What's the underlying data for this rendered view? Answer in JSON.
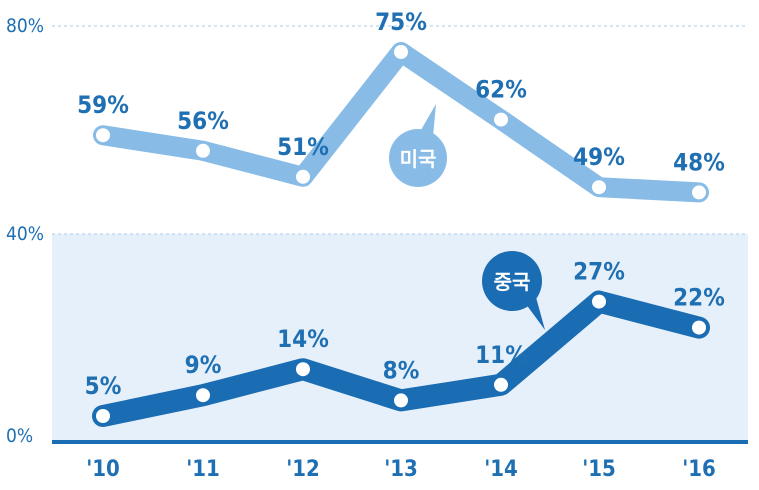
{
  "chart_data": {
    "type": "line",
    "categories": [
      "'10",
      "'11",
      "'12",
      "'13",
      "'14",
      "'15",
      "'16"
    ],
    "series": [
      {
        "name": "미국",
        "values": [
          59,
          56,
          51,
          75,
          62,
          49,
          48
        ],
        "labels": [
          "59%",
          "56%",
          "51%",
          "75%",
          "62%",
          "49%",
          "48%"
        ],
        "color": "#88bce6",
        "label_color": "#1f6fb3"
      },
      {
        "name": "중국",
        "values": [
          5,
          9,
          14,
          8,
          11,
          27,
          22
        ],
        "labels": [
          "5%",
          "9%",
          "14%",
          "8%",
          "11%",
          "27%",
          "22%"
        ],
        "color": "#1a6cb3",
        "label_color": "#1f6fb3"
      }
    ],
    "y_ticks": [
      {
        "value": 0,
        "label": "0%"
      },
      {
        "value": 40,
        "label": "40%"
      },
      {
        "value": 80,
        "label": "80%"
      }
    ],
    "ylim": [
      0,
      80
    ],
    "shaded_band": [
      0,
      40
    ],
    "title": "",
    "xlabel": "",
    "ylabel": ""
  },
  "colors": {
    "axis": "#1a6cb3",
    "band": "#e6f0fa",
    "grid": "#a9cbe9",
    "tick_text": "#1f6fb3"
  }
}
